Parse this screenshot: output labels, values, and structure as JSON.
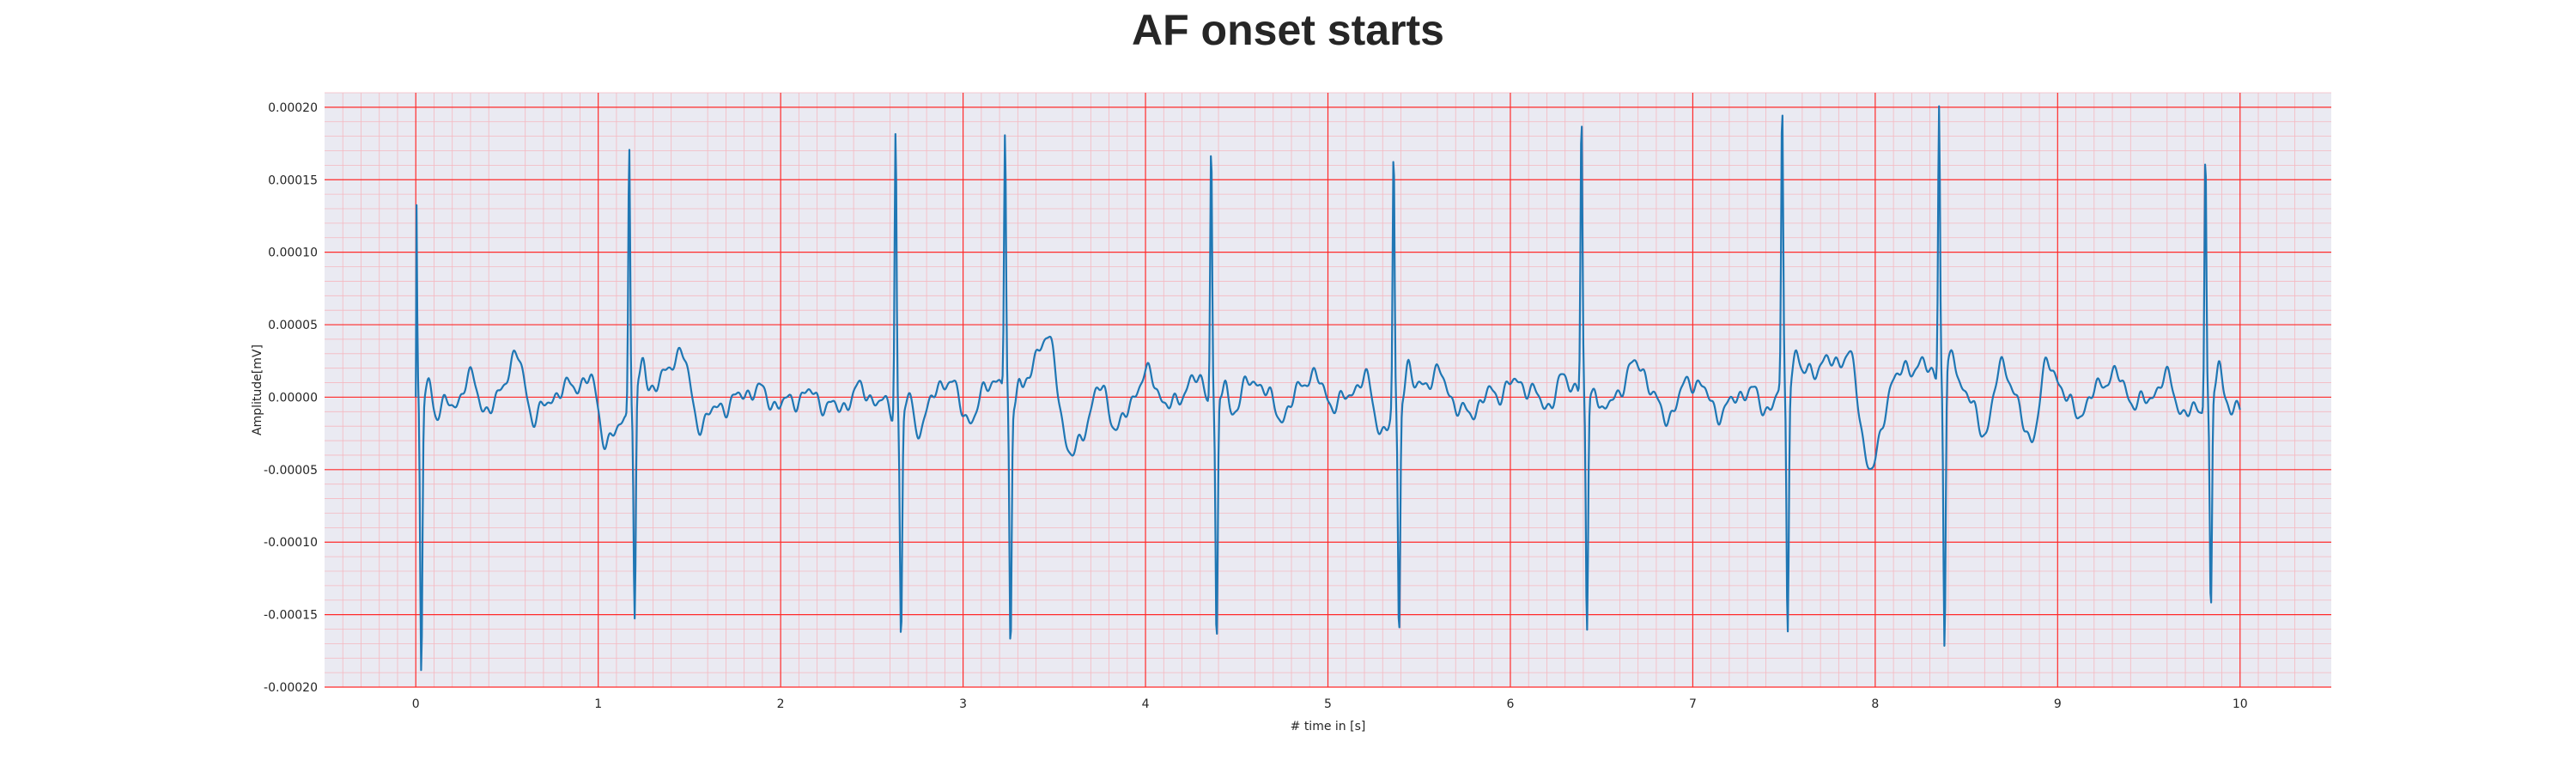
{
  "chart_data": {
    "type": "line",
    "title": "AF onset starts",
    "xlabel": "# time in [s]",
    "ylabel": "Amplitude[mV]",
    "xlim": [
      -0.5,
      10.5
    ],
    "ylim": [
      -0.0002,
      0.00021
    ],
    "x_ticks": [
      "0",
      "1",
      "2",
      "3",
      "4",
      "5",
      "6",
      "7",
      "8",
      "9",
      "10"
    ],
    "y_ticks": [
      "0.00020",
      "0.00015",
      "0.00010",
      "0.00005",
      "0.00000",
      "-0.00005",
      "-0.00010",
      "-0.00015",
      "-0.00020"
    ],
    "grid": true,
    "minor_grid": true,
    "colors": {
      "background": "#eaeaf2",
      "major_grid": "#ff2a2a",
      "minor_grid": "#f5b8c0",
      "line": "#1f77b4"
    },
    "series": [
      {
        "x_start": 0.0,
        "x_end": 10.0,
        "beats": [
          {
            "t": 0.0,
            "peak": 0.000173,
            "trough": -0.000188
          },
          {
            "t": 1.17,
            "peak": 0.000188,
            "trough": -0.000157
          },
          {
            "t": 2.63,
            "peak": 0.000197,
            "trough": -0.000155
          },
          {
            "t": 3.23,
            "peak": 0.000179,
            "trough": -0.000175
          },
          {
            "t": 4.36,
            "peak": 0.000181,
            "trough": -0.00017
          },
          {
            "t": 5.36,
            "peak": 0.000178,
            "trough": -0.000159
          },
          {
            "t": 6.39,
            "peak": 0.000193,
            "trough": -0.000164
          },
          {
            "t": 7.49,
            "peak": 0.000191,
            "trough": -0.000166
          },
          {
            "t": 8.35,
            "peak": 0.00019,
            "trough": -0.000188
          },
          {
            "t": 9.81,
            "peak": 0.00018,
            "trough": -0.000153
          }
        ],
        "baseline_points": [
          [
            0.05,
            -5e-06
          ],
          [
            0.1,
            -1e-05
          ],
          [
            0.2,
            -5e-06
          ],
          [
            0.3,
            1.2e-05
          ],
          [
            0.4,
            -1e-05
          ],
          [
            0.55,
            2.7e-05
          ],
          [
            0.65,
            -1.3e-05
          ],
          [
            0.8,
            5e-06
          ],
          [
            0.95,
            1.2e-05
          ],
          [
            1.05,
            -3e-05
          ],
          [
            1.25,
            5e-06
          ],
          [
            1.35,
            1.2e-05
          ],
          [
            1.45,
            3.3e-05
          ],
          [
            1.55,
            -1.7e-05
          ],
          [
            1.7,
            -5e-06
          ],
          [
            1.85,
            5e-06
          ],
          [
            2.0,
            -5e-06
          ],
          [
            2.15,
            2e-06
          ],
          [
            2.3,
            -8e-06
          ],
          [
            2.45,
            5e-06
          ],
          [
            2.55,
            -5e-06
          ],
          [
            2.75,
            -2e-05
          ],
          [
            2.9,
            1.2e-05
          ],
          [
            3.05,
            -1.5e-05
          ],
          [
            3.15,
            1.3e-05
          ],
          [
            3.3,
            -5e-06
          ],
          [
            3.45,
            4.2e-05
          ],
          [
            3.6,
            -4e-05
          ],
          [
            3.75,
            5e-06
          ],
          [
            3.85,
            -2e-05
          ],
          [
            4.0,
            1.5e-05
          ],
          [
            4.15,
            -7e-06
          ],
          [
            4.25,
            1.2e-05
          ],
          [
            4.45,
            -1e-05
          ],
          [
            4.6,
            1.2e-05
          ],
          [
            4.75,
            -1.2e-05
          ],
          [
            4.9,
            1.5e-05
          ],
          [
            5.05,
            -5e-06
          ],
          [
            5.2,
            1.2e-05
          ],
          [
            5.3,
            -2.3e-05
          ],
          [
            5.45,
            5e-06
          ],
          [
            5.6,
            1.5e-05
          ],
          [
            5.75,
            -1.2e-05
          ],
          [
            5.9,
            2e-06
          ],
          [
            6.05,
            1e-05
          ],
          [
            6.2,
            -5e-06
          ],
          [
            6.3,
            1.2e-05
          ],
          [
            6.5,
            -1e-05
          ],
          [
            6.7,
            2.2e-05
          ],
          [
            6.85,
            -1.3e-05
          ],
          [
            7.0,
            1.2e-05
          ],
          [
            7.15,
            -1e-05
          ],
          [
            7.3,
            5e-06
          ],
          [
            7.4,
            -7e-06
          ],
          [
            7.55,
            1.2e-05
          ],
          [
            7.7,
            2.2e-05
          ],
          [
            7.85,
            2.8e-05
          ],
          [
            7.98,
            -5e-05
          ],
          [
            8.1,
            1.2e-05
          ],
          [
            8.2,
            2.2e-05
          ],
          [
            8.45,
            1.2e-05
          ],
          [
            8.6,
            -2.2e-05
          ],
          [
            8.7,
            2.2e-05
          ],
          [
            8.85,
            -2.8e-05
          ],
          [
            8.95,
            2.2e-05
          ],
          [
            9.1,
            -1e-05
          ],
          [
            9.3,
            1.5e-05
          ],
          [
            9.45,
            -5e-06
          ],
          [
            9.6,
            1.2e-05
          ],
          [
            9.7,
            -1.2e-05
          ],
          [
            9.9,
            2e-06
          ],
          [
            10.0,
            -1.2e-05
          ]
        ]
      }
    ]
  }
}
